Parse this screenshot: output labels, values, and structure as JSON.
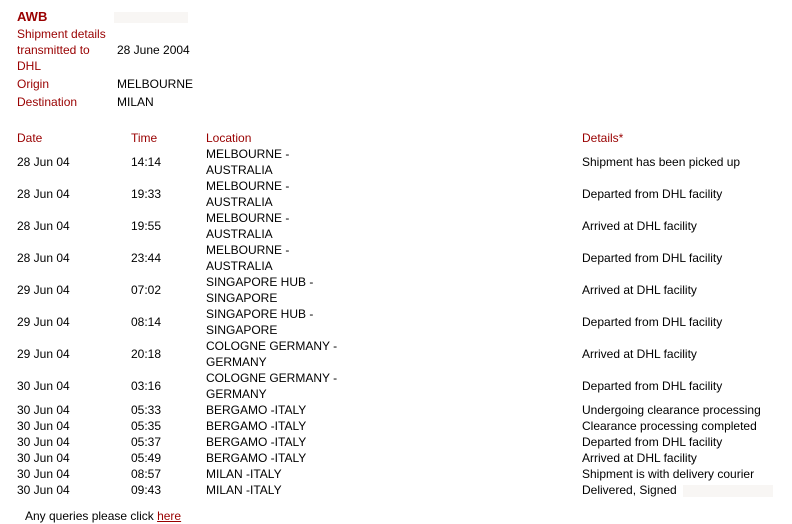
{
  "header": {
    "awb_label": "AWB",
    "transmitted_label": "Shipment details transmitted to DHL",
    "transmitted_value": "28 June 2004",
    "origin_label": "Origin",
    "origin_value": "MELBOURNE",
    "destination_label": "Destination",
    "destination_value": "MILAN"
  },
  "table": {
    "columns": [
      "Date",
      "Time",
      "Location",
      "Details*"
    ],
    "rows": [
      [
        "28 Jun 04",
        "14:14",
        "MELBOURNE -AUSTRALIA",
        "Shipment has been picked up"
      ],
      [
        "28 Jun 04",
        "19:33",
        "MELBOURNE -AUSTRALIA",
        "Departed from DHL facility"
      ],
      [
        "28 Jun 04",
        "19:55",
        "MELBOURNE -AUSTRALIA",
        "Arrived at DHL facility"
      ],
      [
        "28 Jun 04",
        "23:44",
        "MELBOURNE -AUSTRALIA",
        "Departed from DHL facility"
      ],
      [
        "29 Jun 04",
        "07:02",
        "SINGAPORE HUB -SINGAPORE",
        "Arrived at DHL facility"
      ],
      [
        "29 Jun 04",
        "08:14",
        "SINGAPORE HUB -SINGAPORE",
        "Departed from DHL facility"
      ],
      [
        "29 Jun 04",
        "20:18",
        "COLOGNE GERMANY -GERMANY",
        "Arrived at DHL facility"
      ],
      [
        "30 Jun 04",
        "03:16",
        "COLOGNE GERMANY -GERMANY",
        "Departed from DHL facility"
      ],
      [
        "30 Jun 04",
        "05:33",
        "BERGAMO -ITALY",
        "Undergoing clearance processing"
      ],
      [
        "30 Jun 04",
        "05:35",
        "BERGAMO -ITALY",
        "Clearance processing completed"
      ],
      [
        "30 Jun 04",
        "05:37",
        "BERGAMO -ITALY",
        "Departed from DHL facility"
      ],
      [
        "30 Jun 04",
        "05:49",
        "BERGAMO -ITALY",
        "Arrived at DHL facility"
      ],
      [
        "30 Jun 04",
        "08:57",
        "MILAN -ITALY",
        "Shipment is with delivery courier"
      ],
      [
        "30 Jun 04",
        "09:43",
        "MILAN -ITALY",
        "Delivered, Signed"
      ]
    ]
  },
  "footer": {
    "text": "Any queries please click",
    "link": "here"
  },
  "colors": {
    "accent": "#990000"
  }
}
